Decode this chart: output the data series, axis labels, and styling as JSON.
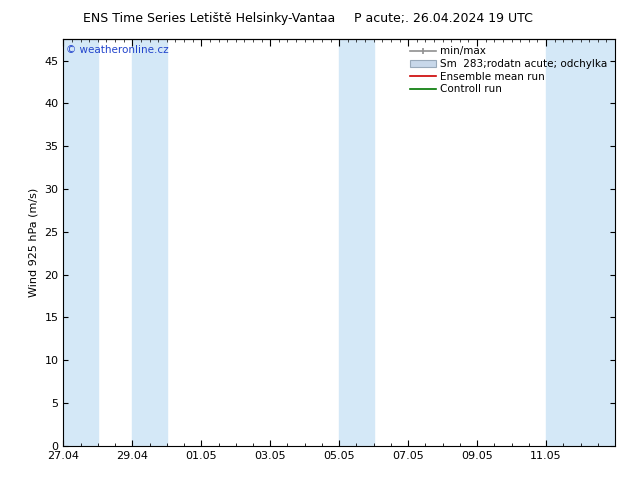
{
  "title_left": "ENS Time Series Letiště Helsinky-Vantaa",
  "title_right": "P acute;. 26.04.2024 19 UTC",
  "ylabel": "Wind 925 hPa (m/s)",
  "watermark": "© weatheronline.cz",
  "ylim": [
    0,
    47.5
  ],
  "yticks": [
    0,
    5,
    10,
    15,
    20,
    25,
    30,
    35,
    40,
    45
  ],
  "xlim": [
    0,
    16
  ],
  "xtick_labels": [
    "27.04",
    "29.04",
    "01.05",
    "03.05",
    "05.05",
    "07.05",
    "09.05",
    "11.05"
  ],
  "xtick_positions": [
    0,
    2,
    4,
    6,
    8,
    10,
    12,
    14
  ],
  "shaded_bands": [
    [
      0,
      1
    ],
    [
      2,
      3
    ],
    [
      8,
      9
    ],
    [
      14,
      16
    ]
  ],
  "band_color": "#d4e8f7",
  "background_color": "#ffffff",
  "plot_bg_color": "#ffffff",
  "legend_items": [
    {
      "label": "min/max",
      "color": "#a0a0a0",
      "type": "hbar"
    },
    {
      "label": "Sm  283;rodatn acute; odchylka",
      "color": "#c8d8ea",
      "type": "box"
    },
    {
      "label": "Ensemble mean run",
      "color": "#cc0000",
      "type": "line"
    },
    {
      "label": "Controll run",
      "color": "#007700",
      "type": "line"
    }
  ],
  "title_fontsize": 9,
  "axis_fontsize": 8,
  "tick_fontsize": 8,
  "legend_fontsize": 7.5
}
